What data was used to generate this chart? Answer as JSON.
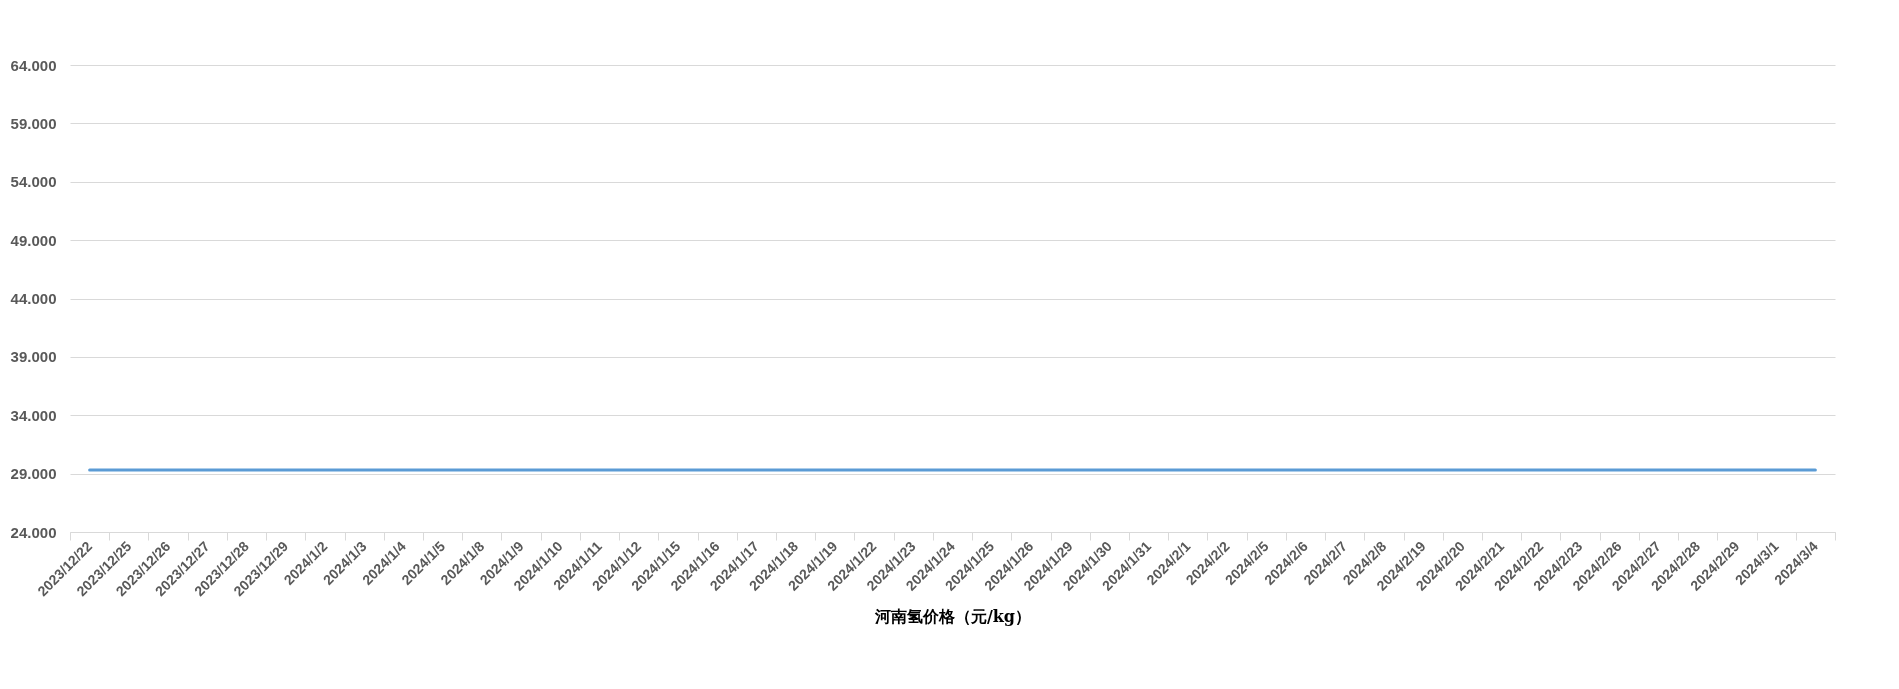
{
  "chart_data": {
    "type": "line",
    "xlabel": "河南氢价格（元/kg）",
    "categories": [
      "2023/12/22",
      "2023/12/25",
      "2023/12/26",
      "2023/12/27",
      "2023/12/28",
      "2023/12/29",
      "2024/1/2",
      "2024/1/3",
      "2024/1/4",
      "2024/1/5",
      "2024/1/8",
      "2024/1/9",
      "2024/1/10",
      "2024/1/11",
      "2024/1/12",
      "2024/1/15",
      "2024/1/16",
      "2024/1/17",
      "2024/1/18",
      "2024/1/19",
      "2024/1/22",
      "2024/1/23",
      "2024/1/24",
      "2024/1/25",
      "2024/1/26",
      "2024/1/29",
      "2024/1/30",
      "2024/1/31",
      "2024/2/1",
      "2024/2/2",
      "2024/2/5",
      "2024/2/6",
      "2024/2/7",
      "2024/2/8",
      "2024/2/19",
      "2024/2/20",
      "2024/2/21",
      "2024/2/22",
      "2024/2/23",
      "2024/2/26",
      "2024/2/27",
      "2024/2/28",
      "2024/2/29",
      "2024/3/1",
      "2024/3/4"
    ],
    "series": [
      {
        "color": "#5b9bd5",
        "values": [
          29.3,
          29.3,
          29.3,
          29.3,
          29.3,
          29.3,
          29.3,
          29.3,
          29.3,
          29.3,
          29.3,
          29.3,
          29.3,
          29.3,
          29.3,
          29.3,
          29.3,
          29.3,
          29.3,
          29.3,
          29.3,
          29.3,
          29.3,
          29.3,
          29.3,
          29.3,
          29.3,
          29.3,
          29.3,
          29.3,
          29.3,
          29.3,
          29.3,
          29.3,
          29.3,
          29.3,
          29.3,
          29.3,
          29.3,
          29.3,
          29.3,
          29.3,
          29.3,
          29.3,
          29.3
        ]
      }
    ],
    "ylim": [
      24,
      64
    ],
    "yticks": [
      {
        "value": 24,
        "label": "24.000"
      },
      {
        "value": 29,
        "label": "29.000"
      },
      {
        "value": 34,
        "label": "34.000"
      },
      {
        "value": 39,
        "label": "39.000"
      },
      {
        "value": 44,
        "label": "44.000"
      },
      {
        "value": 49,
        "label": "49.000"
      },
      {
        "value": 54,
        "label": "54.000"
      },
      {
        "value": 59,
        "label": "59.000"
      },
      {
        "value": 64,
        "label": "64.000"
      }
    ],
    "grid": "y",
    "marker": "none",
    "line_style": "solid"
  }
}
